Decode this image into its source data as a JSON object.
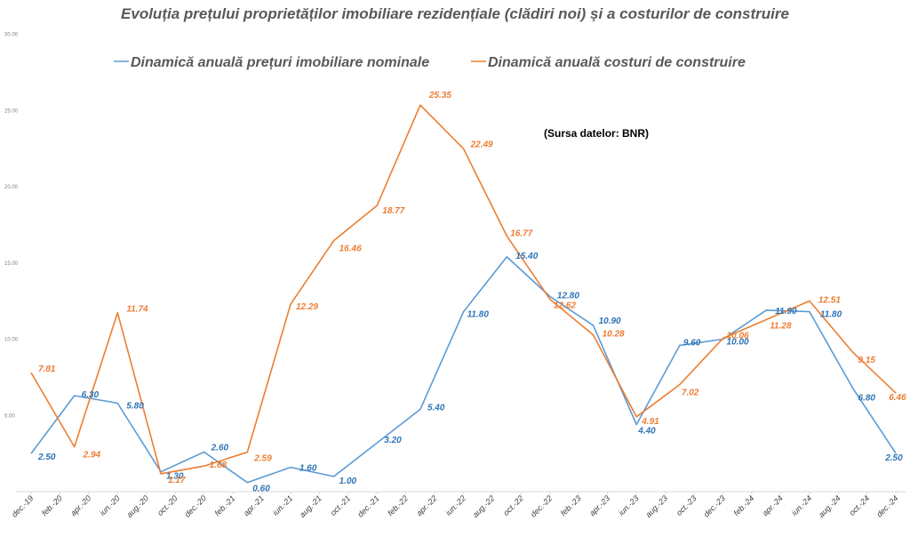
{
  "chart_data": {
    "type": "line",
    "title": "Evoluția prețului proprietăților imobiliare rezidențiale (clădiri noi) și a costurilor de construire",
    "source_note": "(Sursa datelor: BNR)",
    "categories": [
      "dec.-19",
      "feb.-20",
      "apr.-20",
      "iun.-20",
      "aug.-20",
      "oct.-20",
      "dec.-20",
      "feb.-21",
      "apr.-21",
      "iun.-21",
      "aug.-21",
      "oct.-21",
      "dec.-21",
      "feb.-22",
      "apr.-22",
      "iun.-22",
      "aug.-22",
      "oct.-22",
      "dec.-22",
      "feb.-23",
      "apr.-23",
      "iun.-23",
      "aug.-23",
      "oct.-23",
      "dec.-23",
      "feb.-24",
      "apr.-24",
      "iun.-24",
      "aug.-24",
      "oct.-24",
      "dec.-24"
    ],
    "y_ticks": [
      "5.00",
      "10.00",
      "15.00",
      "20.00",
      "25.00",
      "30.00"
    ],
    "ylim": [
      0,
      30
    ],
    "series": [
      {
        "name": "Dinamică anuală prețuri imobiliare nominale",
        "color": "#5b9bd5",
        "label_color": "#2e75b6",
        "points": [
          {
            "x": "dec.-19",
            "y": 2.5,
            "label": "2.50"
          },
          {
            "x": "mar.-20",
            "y": 6.3,
            "label": "6.30"
          },
          {
            "x": "iun.-20",
            "y": 5.8,
            "label": "5.80"
          },
          {
            "x": "sep.-20",
            "y": 1.3,
            "label": "1.30"
          },
          {
            "x": "dec.-20",
            "y": 2.6,
            "label": "2.60"
          },
          {
            "x": "mar.-21",
            "y": 0.6,
            "label": "0.60"
          },
          {
            "x": "iun.-21",
            "y": 1.6,
            "label": "1.60"
          },
          {
            "x": "sep.-21",
            "y": 1.0,
            "label": "1.00"
          },
          {
            "x": "dec.-21",
            "y": 3.2,
            "label": "3.20"
          },
          {
            "x": "mar.-22",
            "y": 5.4,
            "label": "5.40"
          },
          {
            "x": "iun.-22",
            "y": 11.8,
            "label": "11.80"
          },
          {
            "x": "sep.-22",
            "y": 15.4,
            "label": "15.40"
          },
          {
            "x": "dec.-22",
            "y": 12.8,
            "label": "12.80"
          },
          {
            "x": "mar.-23",
            "y": 10.9,
            "label": "10.90"
          },
          {
            "x": "iun.-23",
            "y": 4.4,
            "label": "4.40"
          },
          {
            "x": "sep.-23",
            "y": 9.6,
            "label": "9.60"
          },
          {
            "x": "dec.-23",
            "y": 10.0,
            "label": "10.00"
          },
          {
            "x": "mar.-24",
            "y": 11.9,
            "label": "11.90"
          },
          {
            "x": "iun.-24",
            "y": 11.8,
            "label": "11.80"
          },
          {
            "x": "sep.-24",
            "y": 6.8,
            "label": "6.80"
          },
          {
            "x": "dec.-24",
            "y": 2.5,
            "label": "2.50"
          }
        ]
      },
      {
        "name": "Dinamică anuală costuri de construire",
        "color": "#ed7d31",
        "label_color": "#ed7d31",
        "points": [
          {
            "x": "dec.-19",
            "y": 7.81,
            "label": "7.81"
          },
          {
            "x": "mar.-20",
            "y": 2.94,
            "label": "2.94"
          },
          {
            "x": "iun.-20",
            "y": 11.74,
            "label": "11.74"
          },
          {
            "x": "sep.-20",
            "y": 1.17,
            "label": "1.17"
          },
          {
            "x": "dec.-20",
            "y": 1.68,
            "label": "1.68"
          },
          {
            "x": "mar.-21",
            "y": 2.59,
            "label": "2.59"
          },
          {
            "x": "iun.-21",
            "y": 12.29,
            "label": "12.29"
          },
          {
            "x": "sep.-21",
            "y": 16.46,
            "label": "16.46"
          },
          {
            "x": "dec.-21",
            "y": 18.77,
            "label": "18.77"
          },
          {
            "x": "mar.-22",
            "y": 25.35,
            "label": "25.35"
          },
          {
            "x": "iun.-22",
            "y": 22.49,
            "label": "22.49"
          },
          {
            "x": "sep.-22",
            "y": 16.77,
            "label": "16.77"
          },
          {
            "x": "dec.-22",
            "y": 12.62,
            "label": "12.62"
          },
          {
            "x": "mar.-23",
            "y": 10.28,
            "label": "10.28"
          },
          {
            "x": "iun.-23",
            "y": 4.91,
            "label": "4.91"
          },
          {
            "x": "sep.-23",
            "y": 7.02,
            "label": "7.02"
          },
          {
            "x": "dec.-23",
            "y": 10.06,
            "label": "10.06"
          },
          {
            "x": "mar.-24",
            "y": 11.28,
            "label": "11.28"
          },
          {
            "x": "iun.-24",
            "y": 12.51,
            "label": "12.51"
          },
          {
            "x": "sep.-24",
            "y": 9.15,
            "label": "9.15"
          },
          {
            "x": "dec.-24",
            "y": 6.46,
            "label": "6.46"
          }
        ]
      }
    ]
  }
}
